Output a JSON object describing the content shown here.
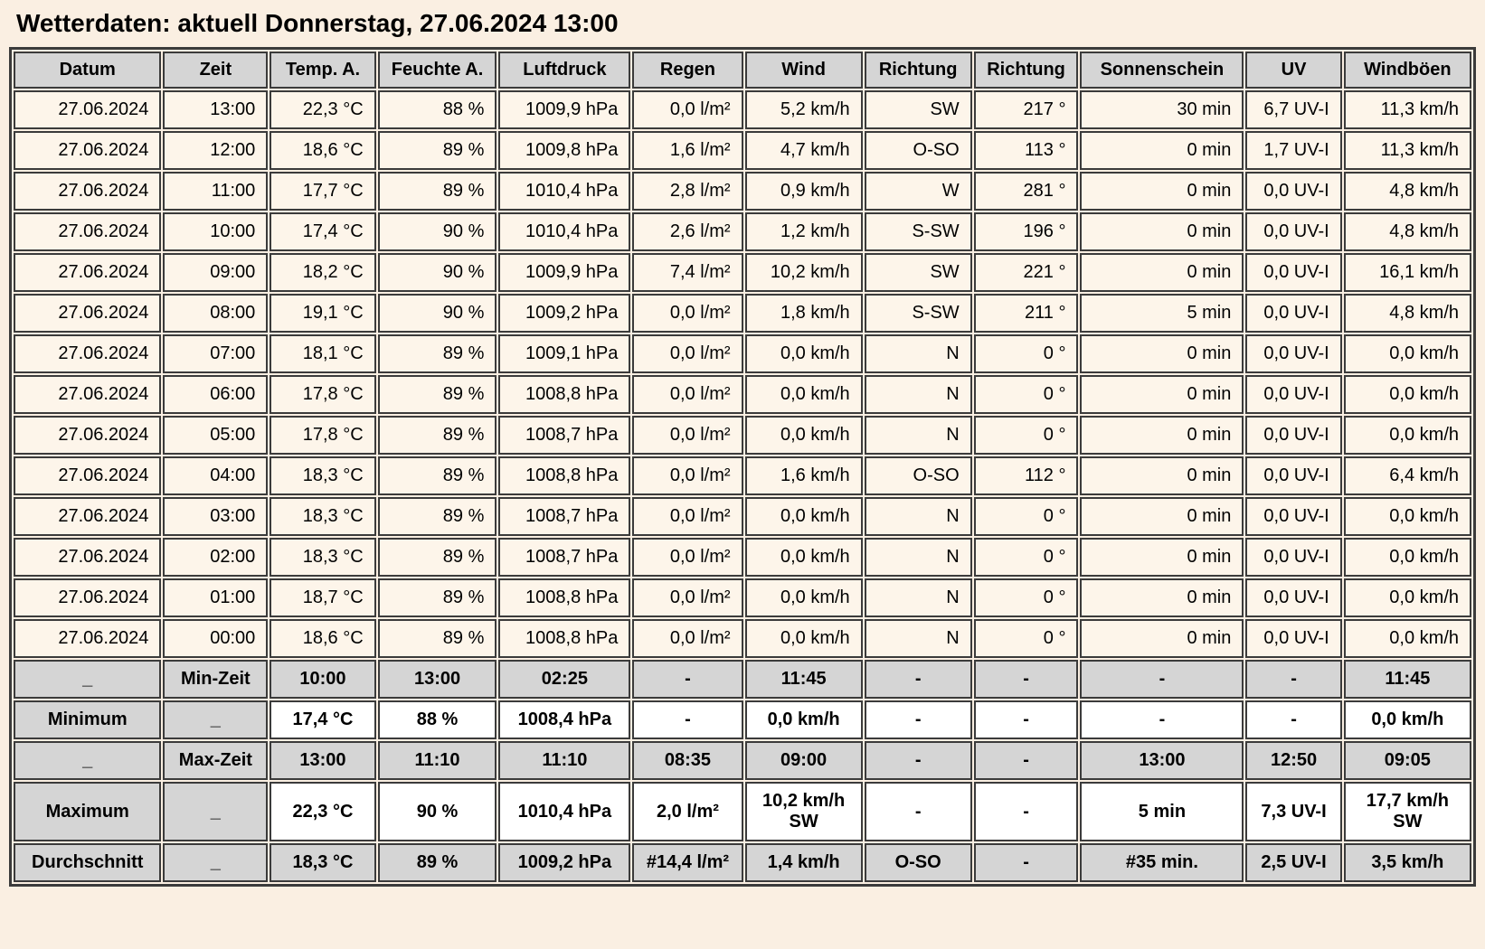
{
  "title": "Wetterdaten: aktuell Donnerstag, 27.06.2024 13:00",
  "colors": {
    "page_bg": "#faefe2",
    "cell_bg": "#fdf5ea",
    "header_bg": "#d5d5d5",
    "border": "#3b3b3b",
    "text": "#000000"
  },
  "table": {
    "headers": [
      "Datum",
      "Zeit",
      "Temp. A.",
      "Feuchte A.",
      "Luftdruck",
      "Regen",
      "Wind",
      "Richtung",
      "Richtung",
      "Sonnenschein",
      "UV",
      "Windböen"
    ],
    "rows": [
      [
        "27.06.2024",
        "13:00",
        "22,3 °C",
        "88 %",
        "1009,9 hPa",
        "0,0 l/m²",
        "5,2 km/h",
        "SW",
        "217 °",
        "30 min",
        "6,7 UV-I",
        "11,3 km/h"
      ],
      [
        "27.06.2024",
        "12:00",
        "18,6 °C",
        "89 %",
        "1009,8 hPa",
        "1,6 l/m²",
        "4,7 km/h",
        "O-SO",
        "113 °",
        "0 min",
        "1,7 UV-I",
        "11,3 km/h"
      ],
      [
        "27.06.2024",
        "11:00",
        "17,7 °C",
        "89 %",
        "1010,4 hPa",
        "2,8 l/m²",
        "0,9 km/h",
        "W",
        "281 °",
        "0 min",
        "0,0 UV-I",
        "4,8 km/h"
      ],
      [
        "27.06.2024",
        "10:00",
        "17,4 °C",
        "90 %",
        "1010,4 hPa",
        "2,6 l/m²",
        "1,2 km/h",
        "S-SW",
        "196 °",
        "0 min",
        "0,0 UV-I",
        "4,8 km/h"
      ],
      [
        "27.06.2024",
        "09:00",
        "18,2 °C",
        "90 %",
        "1009,9 hPa",
        "7,4 l/m²",
        "10,2 km/h",
        "SW",
        "221 °",
        "0 min",
        "0,0 UV-I",
        "16,1 km/h"
      ],
      [
        "27.06.2024",
        "08:00",
        "19,1 °C",
        "90 %",
        "1009,2 hPa",
        "0,0 l/m²",
        "1,8 km/h",
        "S-SW",
        "211 °",
        "5 min",
        "0,0 UV-I",
        "4,8 km/h"
      ],
      [
        "27.06.2024",
        "07:00",
        "18,1 °C",
        "89 %",
        "1009,1 hPa",
        "0,0 l/m²",
        "0,0 km/h",
        "N",
        "0 °",
        "0 min",
        "0,0 UV-I",
        "0,0 km/h"
      ],
      [
        "27.06.2024",
        "06:00",
        "17,8 °C",
        "89 %",
        "1008,8 hPa",
        "0,0 l/m²",
        "0,0 km/h",
        "N",
        "0 °",
        "0 min",
        "0,0 UV-I",
        "0,0 km/h"
      ],
      [
        "27.06.2024",
        "05:00",
        "17,8 °C",
        "89 %",
        "1008,7 hPa",
        "0,0 l/m²",
        "0,0 km/h",
        "N",
        "0 °",
        "0 min",
        "0,0 UV-I",
        "0,0 km/h"
      ],
      [
        "27.06.2024",
        "04:00",
        "18,3 °C",
        "89 %",
        "1008,8 hPa",
        "0,0 l/m²",
        "1,6 km/h",
        "O-SO",
        "112 °",
        "0 min",
        "0,0 UV-I",
        "6,4 km/h"
      ],
      [
        "27.06.2024",
        "03:00",
        "18,3 °C",
        "89 %",
        "1008,7 hPa",
        "0,0 l/m²",
        "0,0 km/h",
        "N",
        "0 °",
        "0 min",
        "0,0 UV-I",
        "0,0 km/h"
      ],
      [
        "27.06.2024",
        "02:00",
        "18,3 °C",
        "89 %",
        "1008,7 hPa",
        "0,0 l/m²",
        "0,0 km/h",
        "N",
        "0 °",
        "0 min",
        "0,0 UV-I",
        "0,0 km/h"
      ],
      [
        "27.06.2024",
        "01:00",
        "18,7 °C",
        "89 %",
        "1008,8 hPa",
        "0,0 l/m²",
        "0,0 km/h",
        "N",
        "0 °",
        "0 min",
        "0,0 UV-I",
        "0,0 km/h"
      ],
      [
        "27.06.2024",
        "00:00",
        "18,6 °C",
        "89 %",
        "1008,8 hPa",
        "0,0 l/m²",
        "0,0 km/h",
        "N",
        "0 °",
        "0 min",
        "0,0 UV-I",
        "0,0 km/h"
      ]
    ],
    "summary_rows": [
      {
        "name": "min-zeit",
        "type": "time",
        "cells": [
          "_",
          "Min-Zeit",
          "10:00",
          "13:00",
          "02:25",
          "-",
          "11:45",
          "-",
          "-",
          "-",
          "-",
          "11:45"
        ]
      },
      {
        "name": "minimum",
        "type": "value",
        "cells": [
          "Minimum",
          "_",
          "17,4 °C",
          "88 %",
          "1008,4 hPa",
          "-",
          "0,0 km/h",
          "-",
          "-",
          "-",
          "-",
          "0,0 km/h"
        ]
      },
      {
        "name": "max-zeit",
        "type": "time",
        "cells": [
          "_",
          "Max-Zeit",
          "13:00",
          "11:10",
          "11:10",
          "08:35",
          "09:00",
          "-",
          "-",
          "13:00",
          "12:50",
          "09:05"
        ]
      },
      {
        "name": "maximum",
        "type": "value",
        "cells": [
          "Maximum",
          "_",
          "22,3 °C",
          "90 %",
          "1010,4 hPa",
          "2,0 l/m²",
          "10,2 km/h\nSW",
          "-",
          "-",
          "5 min",
          "7,3 UV-I",
          "17,7 km/h\nSW"
        ]
      },
      {
        "name": "durchschnitt",
        "type": "average",
        "cells": [
          "Durchschnitt",
          "_",
          "18,3 °C",
          "89 %",
          "1009,2 hPa",
          "#14,4 l/m²",
          "1,4 km/h",
          "O-SO",
          "-",
          "#35 min.",
          "2,5 UV-I",
          "3,5 km/h"
        ]
      }
    ]
  }
}
